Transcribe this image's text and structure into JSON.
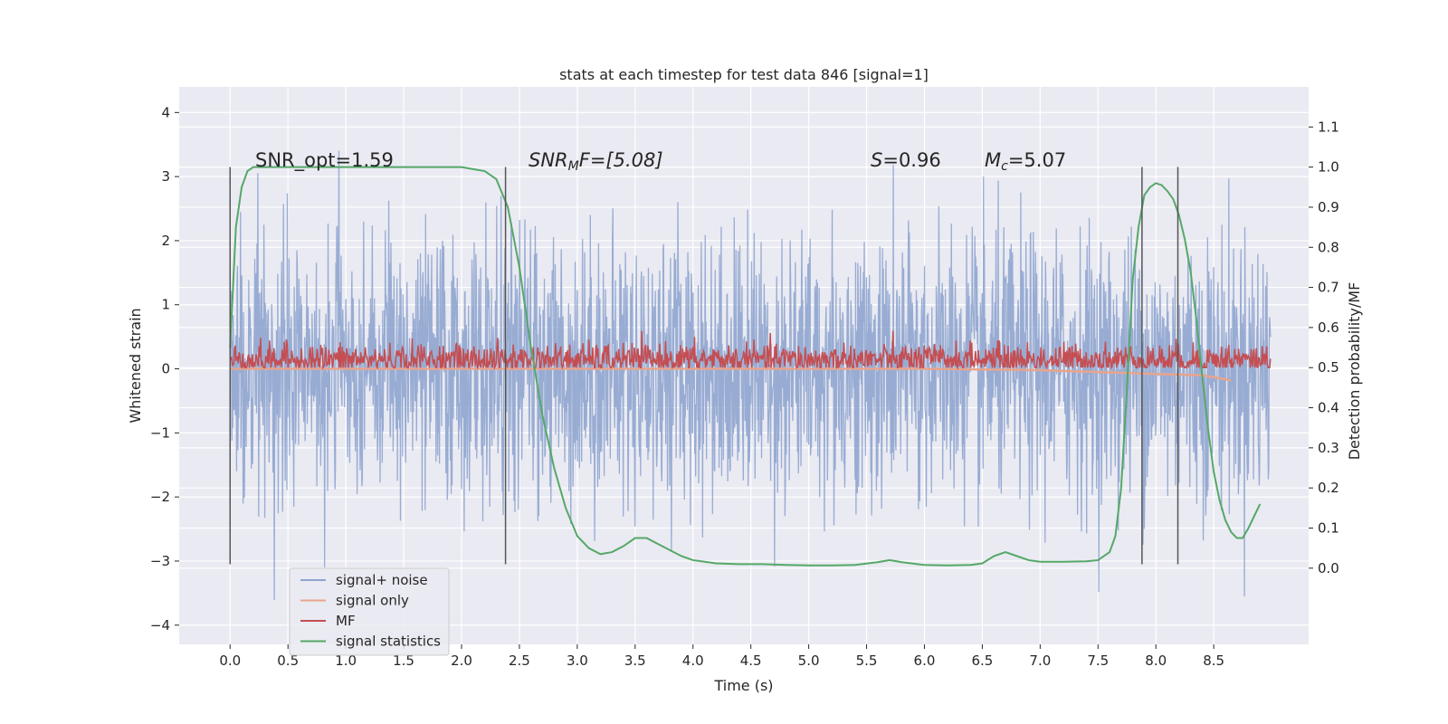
{
  "chart_data": {
    "type": "line",
    "title": "stats at each timestep for test data 846 [signal=1]",
    "xlabel": "Time (s)",
    "ylabel": "Whitened strain",
    "y2label": "Detection probability/MF",
    "xlim": [
      -0.44,
      9.32
    ],
    "ylim": [
      -4.3,
      4.4
    ],
    "y2lim": [
      -0.19,
      1.2
    ],
    "xticks": [
      "0.0",
      "0.5",
      "1.0",
      "1.5",
      "2.0",
      "2.5",
      "3.0",
      "3.5",
      "4.0",
      "4.5",
      "5.0",
      "5.5",
      "6.0",
      "6.5",
      "7.0",
      "7.5",
      "8.0",
      "8.5"
    ],
    "yticks": [
      "4",
      "3",
      "2",
      "1",
      "0",
      "−1",
      "−2",
      "−3",
      "−4"
    ],
    "y2ticks": [
      "1.1",
      "1.0",
      "0.9",
      "0.8",
      "0.7",
      "0.6",
      "0.5",
      "0.4",
      "0.3",
      "0.2",
      "0.1",
      "0.0"
    ],
    "grid": true,
    "legend_position": "lower-left",
    "annotations": {
      "snr_opt": "SNR_opt=1.59",
      "snr_mf_sym": "SNR",
      "snr_mf_sub": "M",
      "snr_mf_rest": "F=[5.08]",
      "s_sym": "S",
      "s_rest": "=0.96",
      "mc_sym": "M",
      "mc_sub": "c",
      "mc_rest": "=5.07"
    },
    "vertical_lines_x": [
      0.0,
      2.38,
      7.88,
      8.19
    ],
    "series": [
      {
        "name": "signal+ noise",
        "color": "#8fa5cf",
        "axis": "left",
        "description_range": [
          -3.8,
          4.0
        ],
        "x_range": [
          0.0,
          8.99
        ]
      },
      {
        "name": "signal only",
        "color": "#e8a48c",
        "axis": "left",
        "x": [
          0.0,
          6.0,
          6.5,
          7.0,
          7.5,
          8.0,
          8.4,
          8.65
        ],
        "y": [
          0.0,
          0.0,
          -0.01,
          -0.02,
          -0.05,
          -0.08,
          -0.1,
          -0.18
        ]
      },
      {
        "name": "MF",
        "color": "#c44e52",
        "axis": "right",
        "x_range": [
          0.0,
          8.99
        ],
        "center": 0.52,
        "spread": [
          0.5,
          0.62
        ]
      },
      {
        "name": "signal statistics",
        "color": "#55a868",
        "axis": "right",
        "x": [
          0.0,
          0.05,
          0.1,
          0.15,
          0.2,
          0.3,
          0.5,
          1.0,
          1.5,
          1.9,
          2.0,
          2.1,
          2.2,
          2.3,
          2.4,
          2.5,
          2.6,
          2.7,
          2.8,
          2.9,
          3.0,
          3.1,
          3.2,
          3.3,
          3.4,
          3.5,
          3.6,
          3.7,
          3.8,
          3.9,
          4.0,
          4.2,
          4.4,
          4.6,
          4.8,
          5.0,
          5.2,
          5.4,
          5.6,
          5.7,
          5.8,
          6.0,
          6.2,
          6.4,
          6.5,
          6.6,
          6.7,
          6.8,
          6.9,
          7.0,
          7.2,
          7.4,
          7.5,
          7.6,
          7.65,
          7.7,
          7.75,
          7.8,
          7.85,
          7.9,
          7.95,
          8.0,
          8.05,
          8.1,
          8.15,
          8.2,
          8.25,
          8.3,
          8.35,
          8.4,
          8.45,
          8.5,
          8.55,
          8.6,
          8.65,
          8.7,
          8.75,
          8.8,
          8.85,
          8.9
        ],
        "y": [
          0.55,
          0.85,
          0.95,
          0.99,
          1.0,
          1.0,
          1.0,
          1.0,
          1.0,
          1.0,
          1.0,
          0.995,
          0.99,
          0.97,
          0.9,
          0.75,
          0.55,
          0.38,
          0.25,
          0.15,
          0.08,
          0.05,
          0.035,
          0.04,
          0.055,
          0.075,
          0.075,
          0.06,
          0.045,
          0.03,
          0.02,
          0.012,
          0.01,
          0.01,
          0.008,
          0.007,
          0.007,
          0.008,
          0.015,
          0.02,
          0.015,
          0.008,
          0.007,
          0.008,
          0.012,
          0.03,
          0.04,
          0.03,
          0.02,
          0.016,
          0.016,
          0.017,
          0.02,
          0.04,
          0.08,
          0.2,
          0.45,
          0.72,
          0.85,
          0.93,
          0.95,
          0.96,
          0.955,
          0.94,
          0.92,
          0.88,
          0.82,
          0.74,
          0.62,
          0.48,
          0.35,
          0.24,
          0.17,
          0.12,
          0.09,
          0.075,
          0.075,
          0.1,
          0.13,
          0.16
        ]
      }
    ]
  }
}
